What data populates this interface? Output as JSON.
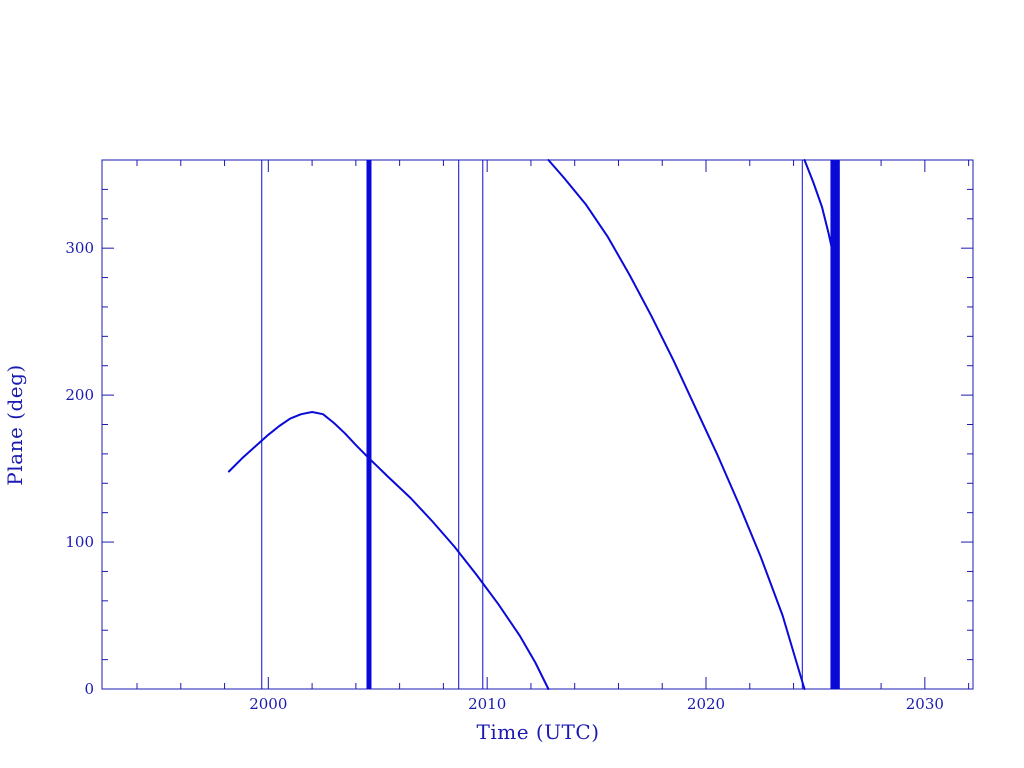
{
  "colors": {
    "axis": "#1a1ab0",
    "series": "#0a0ad8",
    "background": "#ffffff"
  },
  "chart_data": {
    "type": "line",
    "title": "",
    "xlabel": "Time (UTC)",
    "ylabel": "Plane (deg)",
    "xlim": [
      1992.4,
      2032.2
    ],
    "ylim": [
      0,
      360
    ],
    "grid": false,
    "x_ticks": [
      2000,
      2010,
      2020,
      2030
    ],
    "x_tick_labels": [
      "2000",
      "2010",
      "2020",
      "2030"
    ],
    "x_minor_step": 2,
    "y_ticks": [
      0,
      100,
      200,
      300
    ],
    "y_tick_labels": [
      "0",
      "100",
      "200",
      "300"
    ],
    "y_minor_step": 20,
    "series": [
      {
        "values_xy": [
          [
            1998.2,
            148
          ],
          [
            1998.8,
            157
          ],
          [
            1999.4,
            165
          ],
          [
            2000.0,
            173
          ],
          [
            2000.5,
            179
          ],
          [
            2001.0,
            184
          ],
          [
            2001.5,
            187
          ],
          [
            2002.0,
            188.5
          ],
          [
            2002.5,
            187
          ],
          [
            2003.0,
            181
          ],
          [
            2003.5,
            174
          ],
          [
            2004.0,
            166
          ],
          [
            2004.6,
            157
          ],
          [
            2005.5,
            144
          ],
          [
            2006.5,
            130
          ],
          [
            2007.5,
            114
          ],
          [
            2008.5,
            97
          ],
          [
            2009.5,
            78
          ],
          [
            2010.5,
            58
          ],
          [
            2011.5,
            36
          ],
          [
            2012.2,
            18
          ],
          [
            2012.8,
            0
          ]
        ]
      },
      {
        "values_xy": [
          [
            2012.8,
            360
          ],
          [
            2013.5,
            348
          ],
          [
            2014.5,
            330
          ],
          [
            2015.5,
            308
          ],
          [
            2016.5,
            282
          ],
          [
            2017.5,
            254
          ],
          [
            2018.5,
            224
          ],
          [
            2019.5,
            192
          ],
          [
            2020.5,
            160
          ],
          [
            2021.5,
            126
          ],
          [
            2022.5,
            90
          ],
          [
            2023.5,
            50
          ],
          [
            2024.1,
            20
          ],
          [
            2024.5,
            0
          ]
        ]
      },
      {
        "values_xy": [
          [
            2024.5,
            360
          ],
          [
            2024.9,
            345
          ],
          [
            2025.3,
            328
          ],
          [
            2025.6,
            310
          ],
          [
            2025.9,
            290
          ]
        ]
      }
    ],
    "vertical_lines": [
      {
        "x": 1999.7,
        "width": "thin"
      },
      {
        "x": 2004.6,
        "width": "thick"
      },
      {
        "x": 2008.7,
        "width": "thin"
      },
      {
        "x": 2009.8,
        "width": "thin"
      },
      {
        "x": 2024.4,
        "width": "thin"
      },
      {
        "x": 2025.8,
        "width": "thick"
      },
      {
        "x": 2026.0,
        "width": "thick"
      }
    ]
  }
}
